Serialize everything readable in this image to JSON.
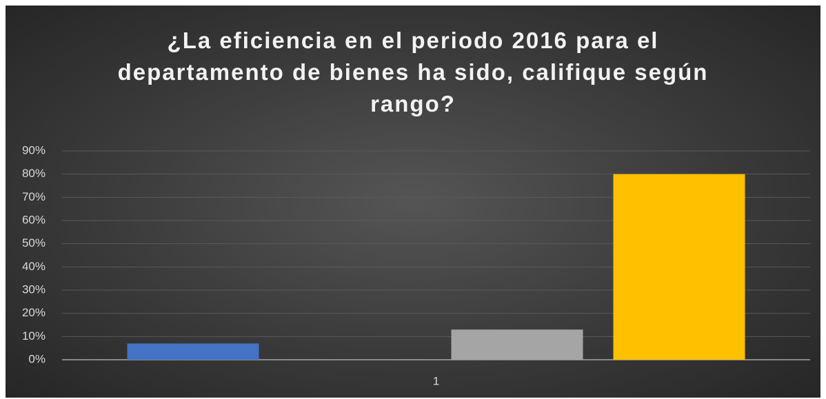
{
  "chart_data": {
    "type": "bar",
    "title": "¿La eficiencia en el periodo 2016 para el departamento de bienes ha sido, califique según rango?",
    "categories": [
      "1"
    ],
    "series": [
      {
        "color": "#4472c4",
        "values": [
          7
        ]
      },
      {
        "color": "#ed7d31",
        "values": [
          0
        ]
      },
      {
        "color": "#a5a5a5",
        "values": [
          13
        ]
      },
      {
        "color": "#ffc000",
        "values": [
          80
        ]
      }
    ],
    "ylim": [
      0,
      90
    ],
    "yticks": [
      {
        "value": 0,
        "label": "0%"
      },
      {
        "value": 10,
        "label": "10%"
      },
      {
        "value": 20,
        "label": "20%"
      },
      {
        "value": 30,
        "label": "30%"
      },
      {
        "value": 40,
        "label": "40%"
      },
      {
        "value": 50,
        "label": "50%"
      },
      {
        "value": 60,
        "label": "60%"
      },
      {
        "value": 70,
        "label": "70%"
      },
      {
        "value": 80,
        "label": "80%"
      },
      {
        "value": 90,
        "label": "90%"
      }
    ],
    "grid": true
  }
}
